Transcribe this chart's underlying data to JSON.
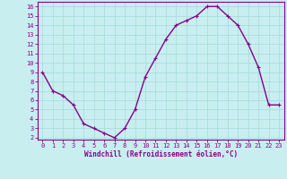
{
  "x": [
    0,
    1,
    2,
    3,
    4,
    5,
    6,
    7,
    8,
    9,
    10,
    11,
    12,
    13,
    14,
    15,
    16,
    17,
    18,
    19,
    20,
    21,
    22,
    23
  ],
  "y": [
    9.0,
    7.0,
    6.5,
    5.5,
    3.5,
    3.0,
    2.5,
    2.0,
    3.0,
    5.0,
    8.5,
    10.5,
    12.5,
    14.0,
    14.5,
    15.0,
    16.0,
    16.0,
    15.0,
    14.0,
    12.0,
    9.5,
    5.5,
    5.5
  ],
  "line_color": "#880088",
  "marker": "+",
  "marker_size": 3,
  "bg_color": "#c8eef0",
  "grid_color": "#aadddd",
  "xlabel": "Windchill (Refroidissement éolien,°C)",
  "xlabel_color": "#880088",
  "tick_color": "#880088",
  "xlim": [
    -0.5,
    23.5
  ],
  "ylim": [
    1.8,
    16.5
  ],
  "yticks": [
    2,
    3,
    4,
    5,
    6,
    7,
    8,
    9,
    10,
    11,
    12,
    13,
    14,
    15,
    16
  ],
  "xtick_labels": [
    "0",
    "1",
    "2",
    "3",
    "4",
    "5",
    "6",
    "7",
    "8",
    "9",
    "10",
    "11",
    "12",
    "13",
    "14",
    "15",
    "16",
    "17",
    "18",
    "19",
    "20",
    "21",
    "22",
    "23"
  ],
  "line_width": 1.0,
  "axes_border_color": "#880088",
  "tick_fontsize": 5.0,
  "xlabel_fontsize": 5.5
}
